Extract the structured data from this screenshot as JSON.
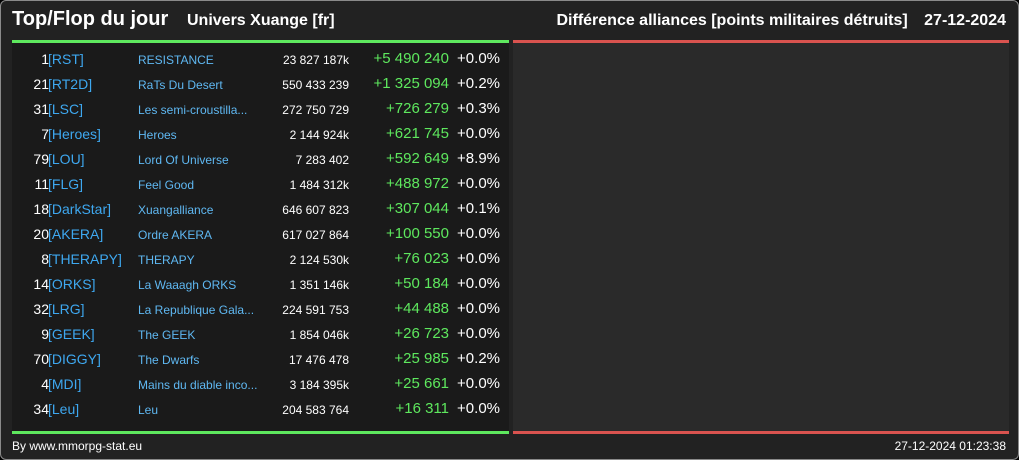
{
  "header": {
    "title": "Top/Flop du jour",
    "universe": "Univers Xuange [fr]",
    "right_title": "Différence alliances [points militaires détruits]",
    "date": "27-12-2024"
  },
  "colors": {
    "positive": "#5ee85e",
    "negative": "#d9534f",
    "tag": "#3ea8f0",
    "name": "#5fb8f2",
    "background": "#222222"
  },
  "top_rows": [
    {
      "rank": "1",
      "tag": "[RST]",
      "name": "RESISTANCE",
      "points": "23 827 187k",
      "delta": "+5 490 240",
      "pct": "+0.0%"
    },
    {
      "rank": "21",
      "tag": "[RT2D]",
      "name": "RaTs Du Desert",
      "points": "550 433 239",
      "delta": "+1 325 094",
      "pct": "+0.2%"
    },
    {
      "rank": "31",
      "tag": "[LSC]",
      "name": "Les semi-croustilla...",
      "points": "272 750 729",
      "delta": "+726 279",
      "pct": "+0.3%"
    },
    {
      "rank": "7",
      "tag": "[Heroes]",
      "name": "Heroes",
      "points": "2 144 924k",
      "delta": "+621 745",
      "pct": "+0.0%"
    },
    {
      "rank": "79",
      "tag": "[LOU]",
      "name": "Lord Of Universe",
      "points": "7 283 402",
      "delta": "+592 649",
      "pct": "+8.9%"
    },
    {
      "rank": "11",
      "tag": "[FLG]",
      "name": "Feel Good",
      "points": "1 484 312k",
      "delta": "+488 972",
      "pct": "+0.0%"
    },
    {
      "rank": "18",
      "tag": "[DarkStar]",
      "name": "Xuangalliance",
      "points": "646 607 823",
      "delta": "+307 044",
      "pct": "+0.1%"
    },
    {
      "rank": "20",
      "tag": "[AKERA]",
      "name": "Ordre AKERA",
      "points": "617 027 864",
      "delta": "+100 550",
      "pct": "+0.0%"
    },
    {
      "rank": "8",
      "tag": "[THERAPY]",
      "name": "THERAPY",
      "points": "2 124 530k",
      "delta": "+76 023",
      "pct": "+0.0%"
    },
    {
      "rank": "14",
      "tag": "[ORKS]",
      "name": "La Waaagh ORKS",
      "points": "1 351 146k",
      "delta": "+50 184",
      "pct": "+0.0%"
    },
    {
      "rank": "32",
      "tag": "[LRG]",
      "name": "La Republique Gala...",
      "points": "224 591 753",
      "delta": "+44 488",
      "pct": "+0.0%"
    },
    {
      "rank": "9",
      "tag": "[GEEK]",
      "name": "The GEEK",
      "points": "1 854 046k",
      "delta": "+26 723",
      "pct": "+0.0%"
    },
    {
      "rank": "70",
      "tag": "[DIGGY]",
      "name": "The Dwarfs",
      "points": "17 476 478",
      "delta": "+25 985",
      "pct": "+0.2%"
    },
    {
      "rank": "4",
      "tag": "[MDI]",
      "name": "Mains du diable inco...",
      "points": "3 184 395k",
      "delta": "+25 661",
      "pct": "+0.0%"
    },
    {
      "rank": "34",
      "tag": "[Leu]",
      "name": "Leu",
      "points": "204 583 764",
      "delta": "+16 311",
      "pct": "+0.0%"
    }
  ],
  "footer": {
    "source": "By www.mmorpg-stat.eu",
    "timestamp": "27-12-2024 01:23:38"
  }
}
